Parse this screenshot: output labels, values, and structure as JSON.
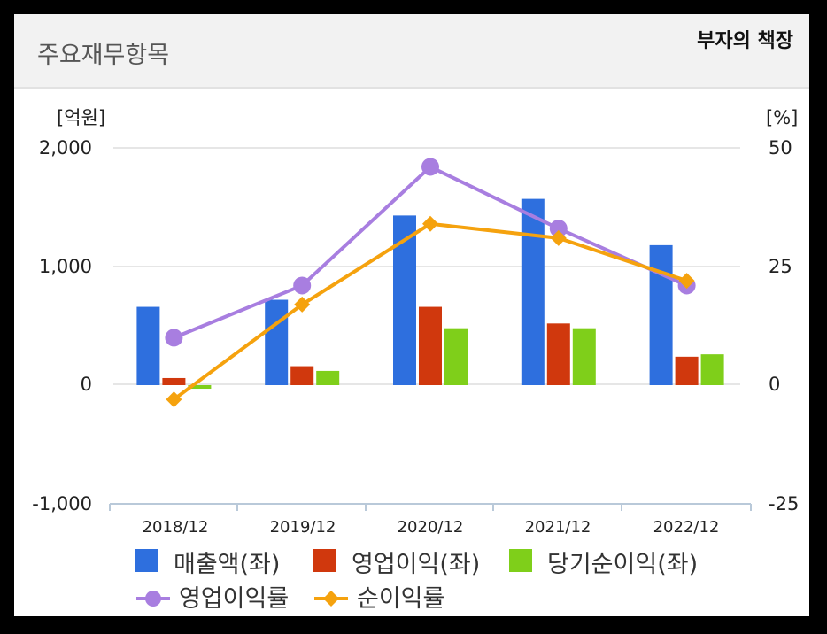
{
  "header": {
    "title": "주요재무항목",
    "watermark": "부자의 책장"
  },
  "chart_data": {
    "type": "bar",
    "categories": [
      "2018/12",
      "2019/12",
      "2020/12",
      "2021/12",
      "2022/12"
    ],
    "bar_series": [
      {
        "name": "매출액(좌)",
        "color": "#2e6fde",
        "values": [
          660,
          720,
          1430,
          1570,
          1180
        ]
      },
      {
        "name": "영업이익(좌)",
        "color": "#d0380d",
        "values": [
          60,
          160,
          660,
          520,
          240
        ]
      },
      {
        "name": "당기순이익(좌)",
        "color": "#7fcf1a",
        "values": [
          -30,
          120,
          480,
          480,
          260
        ]
      }
    ],
    "line_series": [
      {
        "name": "영업이익률",
        "color": "#a87ee0",
        "marker": "circle",
        "values": [
          10,
          21,
          46,
          33,
          21
        ]
      },
      {
        "name": "순이익률",
        "color": "#f5a20e",
        "marker": "diamond",
        "values": [
          -3,
          17,
          34,
          31,
          22
        ]
      }
    ],
    "y_left": {
      "unit": "[억원]",
      "ticks": [
        "2,000",
        "1,000",
        "0",
        "-1,000"
      ],
      "range": [
        -1000,
        2000
      ]
    },
    "y_right": {
      "unit": "[%]",
      "ticks": [
        "50",
        "25",
        "0",
        "-25"
      ],
      "range": [
        -25,
        50
      ]
    },
    "grid": "horizontal",
    "legend_position": "bottom"
  }
}
